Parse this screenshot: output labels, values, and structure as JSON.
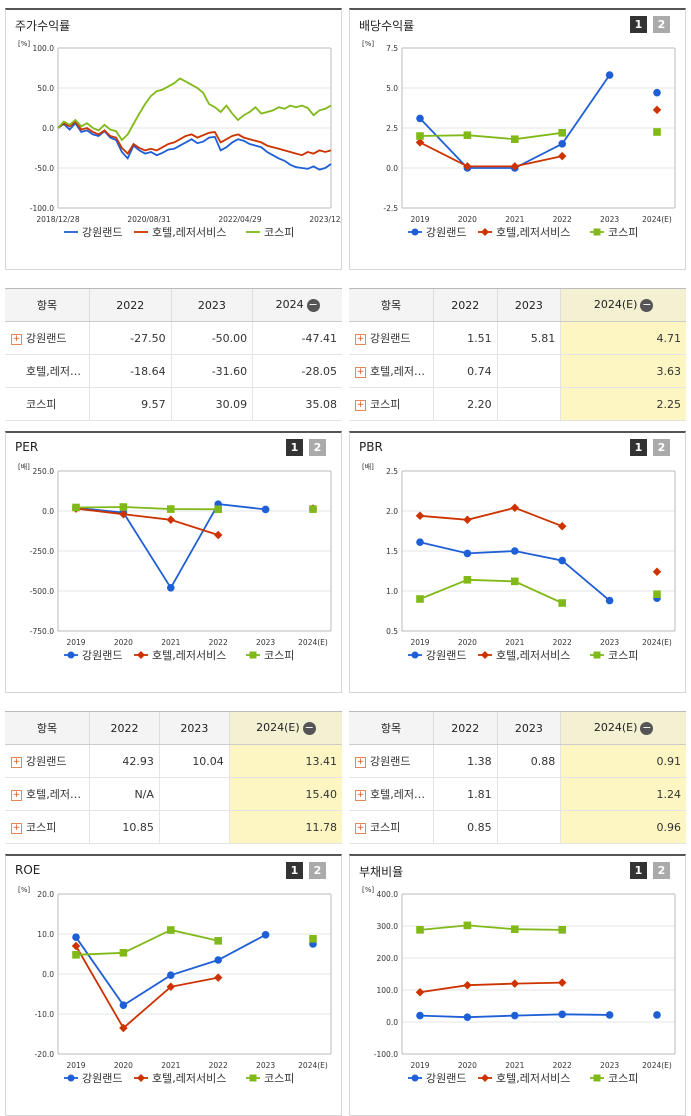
{
  "panels": {
    "stock": {
      "title": "주가수익률",
      "unit": "[%]",
      "chart_data": {
        "type": "line",
        "yticks": [
          "100.0",
          "50.0",
          "0.0",
          "-50.0",
          "-100.0"
        ],
        "ylim": [
          -100,
          100
        ],
        "xlabels": [
          "2018/12/28",
          "2020/08/31",
          "2022/04/29",
          "2023/12/28"
        ],
        "series": [
          {
            "name": "강원랜드",
            "color": "#1f5fd6",
            "values": [
              0,
              5,
              -2,
              6,
              -5,
              -3,
              -8,
              -10,
              -4,
              -12,
              -15,
              -30,
              -38,
              -22,
              -28,
              -32,
              -30,
              -34,
              -31,
              -27,
              -26,
              -22,
              -18,
              -14,
              -19,
              -17,
              -12,
              -11,
              -28,
              -24,
              -18,
              -14,
              -16,
              -20,
              -22,
              -24,
              -30,
              -34,
              -38,
              -41,
              -46,
              -49,
              -50,
              -51,
              -48,
              -52,
              -50,
              -45
            ]
          },
          {
            "name": "호텔,레저서비스",
            "color": "#cc3300",
            "values": [
              0,
              6,
              2,
              8,
              -2,
              0,
              -5,
              -8,
              -3,
              -10,
              -12,
              -25,
              -32,
              -20,
              -25,
              -28,
              -26,
              -28,
              -24,
              -20,
              -18,
              -14,
              -10,
              -8,
              -12,
              -9,
              -6,
              -5,
              -18,
              -14,
              -10,
              -8,
              -12,
              -14,
              -16,
              -18,
              -22,
              -24,
              -26,
              -28,
              -30,
              -32,
              -34,
              -30,
              -32,
              -28,
              -30,
              -28
            ]
          },
          {
            "name": "코스피",
            "color": "#80b918",
            "values": [
              0,
              8,
              4,
              10,
              2,
              6,
              0,
              -3,
              4,
              -2,
              -4,
              -15,
              -8,
              5,
              18,
              30,
              40,
              46,
              48,
              52,
              56,
              62,
              58,
              54,
              50,
              44,
              30,
              26,
              20,
              28,
              18,
              10,
              16,
              20,
              26,
              18,
              20,
              22,
              26,
              24,
              28,
              26,
              28,
              25,
              16,
              22,
              24,
              28
            ]
          }
        ],
        "legend": "bottom"
      },
      "table": {
        "headers": [
          "항목",
          "2022",
          "2023",
          "2024"
        ],
        "rows": [
          {
            "label": "강원랜드",
            "plus": true,
            "v": [
              "-27.50",
              "-50.00",
              "-47.41"
            ]
          },
          {
            "label": "호텔,레저…",
            "plus": false,
            "v": [
              "-18.64",
              "-31.60",
              "-28.05"
            ]
          },
          {
            "label": "코스피",
            "plus": false,
            "v": [
              "9.57",
              "30.09",
              "35.08"
            ]
          }
        ]
      }
    },
    "dividend": {
      "title": "배당수익률",
      "unit": "[%]",
      "chart_data": {
        "type": "line",
        "yticks": [
          "7.5",
          "5.0",
          "2.5",
          "0.0",
          "-2.5"
        ],
        "ylim": [
          -2.5,
          7.5
        ],
        "categories": [
          "2019",
          "2020",
          "2021",
          "2022",
          "2023",
          "2024(E)"
        ],
        "series": [
          {
            "name": "강원랜드",
            "color": "#1f5fd6",
            "values": [
              3.1,
              0.0,
              0.0,
              1.51,
              5.81,
              4.71
            ]
          },
          {
            "name": "호텔,레저서비스",
            "color": "#cc3300",
            "values": [
              1.6,
              0.1,
              0.1,
              0.74,
              null,
              3.63
            ]
          },
          {
            "name": "코스피",
            "color": "#80b918",
            "values": [
              2.0,
              2.05,
              1.8,
              2.2,
              null,
              2.25
            ]
          }
        ],
        "legend": "bottom"
      },
      "table": {
        "headers": [
          "항목",
          "2022",
          "2023",
          "2024(E)"
        ],
        "rows": [
          {
            "label": "강원랜드",
            "plus": true,
            "v": [
              "1.51",
              "5.81",
              "4.71"
            ]
          },
          {
            "label": "호텔,레저…",
            "plus": true,
            "v": [
              "0.74",
              "",
              "3.63"
            ]
          },
          {
            "label": "코스피",
            "plus": true,
            "v": [
              "2.20",
              "",
              "2.25"
            ]
          }
        ]
      }
    },
    "per": {
      "title": "PER",
      "unit": "[배]",
      "chart_data": {
        "type": "line",
        "yticks": [
          "250.0",
          "0.0",
          "-250.0",
          "-500.0",
          "-750.0"
        ],
        "ylim": [
          -750,
          250
        ],
        "categories": [
          "2019",
          "2020",
          "2021",
          "2022",
          "2023",
          "2024(E)"
        ],
        "series": [
          {
            "name": "강원랜드",
            "color": "#1f5fd6",
            "values": [
              20,
              -10,
              -480,
              42.93,
              10.04,
              13.41
            ]
          },
          {
            "name": "호텔,레저서비스",
            "color": "#cc3300",
            "values": [
              15,
              -20,
              -55,
              -150,
              null,
              15.4
            ]
          },
          {
            "name": "코스피",
            "color": "#80b918",
            "values": [
              22,
              25,
              12,
              10.85,
              null,
              11.78
            ]
          }
        ],
        "legend": "bottom"
      },
      "table": {
        "headers": [
          "항목",
          "2022",
          "2023",
          "2024(E)"
        ],
        "rows": [
          {
            "label": "강원랜드",
            "plus": true,
            "v": [
              "42.93",
              "10.04",
              "13.41"
            ]
          },
          {
            "label": "호텔,레저…",
            "plus": true,
            "v": [
              "N/A",
              "",
              "15.40"
            ]
          },
          {
            "label": "코스피",
            "plus": true,
            "v": [
              "10.85",
              "",
              "11.78"
            ]
          }
        ]
      }
    },
    "pbr": {
      "title": "PBR",
      "unit": "[배]",
      "chart_data": {
        "type": "line",
        "yticks": [
          "2.5",
          "2.0",
          "1.5",
          "1.0",
          "0.5"
        ],
        "ylim": [
          0.5,
          2.5
        ],
        "categories": [
          "2019",
          "2020",
          "2021",
          "2022",
          "2023",
          "2024(E)"
        ],
        "series": [
          {
            "name": "강원랜드",
            "color": "#1f5fd6",
            "values": [
              1.61,
              1.47,
              1.5,
              1.38,
              0.88,
              0.91
            ]
          },
          {
            "name": "호텔,레저서비스",
            "color": "#cc3300",
            "values": [
              1.94,
              1.89,
              2.04,
              1.81,
              null,
              1.24
            ]
          },
          {
            "name": "코스피",
            "color": "#80b918",
            "values": [
              0.9,
              1.14,
              1.12,
              0.85,
              null,
              0.96
            ]
          }
        ],
        "legend": "bottom"
      },
      "table": {
        "headers": [
          "항목",
          "2022",
          "2023",
          "2024(E)"
        ],
        "rows": [
          {
            "label": "강원랜드",
            "plus": true,
            "v": [
              "1.38",
              "0.88",
              "0.91"
            ]
          },
          {
            "label": "호텔,레저…",
            "plus": true,
            "v": [
              "1.81",
              "",
              "1.24"
            ]
          },
          {
            "label": "코스피",
            "plus": true,
            "v": [
              "0.85",
              "",
              "0.96"
            ]
          }
        ]
      }
    },
    "roe": {
      "title": "ROE",
      "unit": "[%]",
      "chart_data": {
        "type": "line",
        "yticks": [
          "20.0",
          "10.0",
          "0.0",
          "-10.0",
          "-20.0"
        ],
        "ylim": [
          -20,
          20
        ],
        "categories": [
          "2019",
          "2020",
          "2021",
          "2022",
          "2023",
          "2024(E)"
        ],
        "series": [
          {
            "name": "강원랜드",
            "color": "#1f5fd6",
            "values": [
              9.2,
              -7.8,
              -0.3,
              3.5,
              9.8,
              7.5
            ]
          },
          {
            "name": "호텔,레저서비스",
            "color": "#cc3300",
            "values": [
              7.0,
              -13.5,
              -3.2,
              -0.9,
              null,
              null
            ]
          },
          {
            "name": "코스피",
            "color": "#80b918",
            "values": [
              4.8,
              5.3,
              11.0,
              8.3,
              null,
              8.8
            ]
          }
        ],
        "legend": "bottom"
      }
    },
    "debt": {
      "title": "부채비율",
      "unit": "[%]",
      "chart_data": {
        "type": "line",
        "yticks": [
          "400.0",
          "300.0",
          "200.0",
          "100.0",
          "0.0",
          "-100.0"
        ],
        "ylim": [
          -100,
          400
        ],
        "categories": [
          "2019",
          "2020",
          "2021",
          "2022",
          "2023",
          "2024(E)"
        ],
        "series": [
          {
            "name": "강원랜드",
            "color": "#1f5fd6",
            "values": [
              20,
              15,
              20,
              24,
              22,
              22
            ]
          },
          {
            "name": "호텔,레저서비스",
            "color": "#cc3300",
            "values": [
              93,
              115,
              120,
              123,
              null,
              null
            ]
          },
          {
            "name": "코스피",
            "color": "#80b918",
            "values": [
              288,
              302,
              290,
              288,
              null,
              null
            ]
          }
        ],
        "legend": "bottom"
      }
    }
  },
  "pager": {
    "p1": "1",
    "p2": "2"
  },
  "minus": "−",
  "plus": "+"
}
